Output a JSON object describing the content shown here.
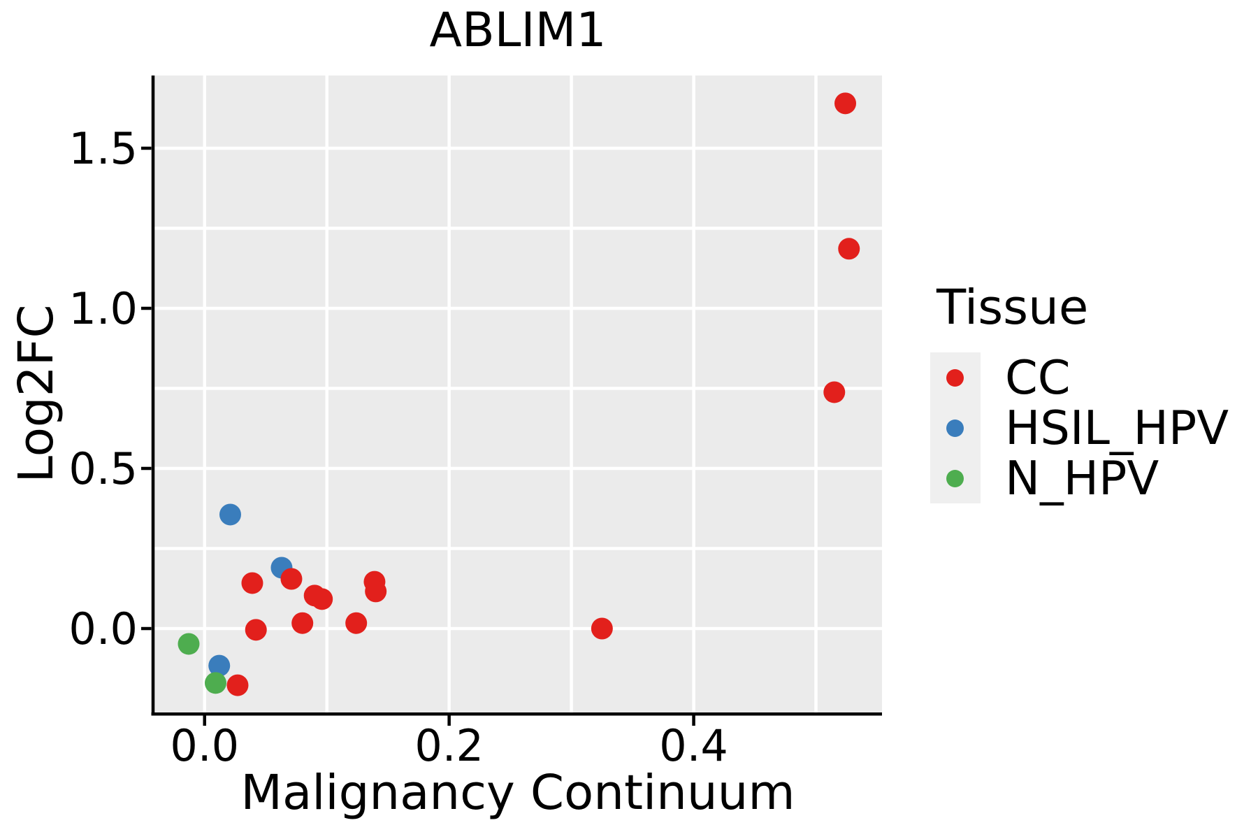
{
  "title": "ABLIM1",
  "legend": {
    "title": "Tissue",
    "items": [
      {
        "label": "CC",
        "color": "#E2201C"
      },
      {
        "label": "HSIL_HPV",
        "color": "#3A7DBC"
      },
      {
        "label": "N_HPV",
        "color": "#4EAD4F"
      }
    ]
  },
  "chart_data": {
    "type": "scatter",
    "title": "ABLIM1",
    "xlabel": "Malignancy Continuum",
    "ylabel": "Log2FC",
    "xlim": [
      -0.041,
      0.554
    ],
    "ylim": [
      -0.262,
      1.727
    ],
    "x_ticks": [
      0.0,
      0.2,
      0.4
    ],
    "x_tick_labels": [
      "0.0",
      "0.2",
      "0.4"
    ],
    "y_ticks": [
      0.0,
      0.5,
      1.0,
      1.5
    ],
    "y_tick_labels": [
      "0.0",
      "0.5",
      "1.0",
      "1.5"
    ],
    "x_grid": [
      0.0,
      0.1,
      0.2,
      0.3,
      0.4,
      0.5
    ],
    "y_grid": [
      0.0,
      0.25,
      0.5,
      0.75,
      1.0,
      1.25,
      1.5
    ],
    "grid": true,
    "panel_bg": "#EBEBEB",
    "grid_color": "#FFFFFF",
    "legend_position": "right",
    "legend_title": "Tissue",
    "series": [
      {
        "name": "CC",
        "color": "#E2201C",
        "points": [
          [
            0.524,
            1.64
          ],
          [
            0.527,
            1.186
          ],
          [
            0.515,
            0.738
          ],
          [
            0.325,
            0.0
          ],
          [
            0.039,
            0.142
          ],
          [
            0.071,
            0.155
          ],
          [
            0.09,
            0.103
          ],
          [
            0.096,
            0.092
          ],
          [
            0.139,
            0.146
          ],
          [
            0.14,
            0.116
          ],
          [
            0.08,
            0.017
          ],
          [
            0.124,
            0.017
          ],
          [
            0.042,
            -0.004
          ],
          [
            0.027,
            -0.177
          ]
        ]
      },
      {
        "name": "HSIL_HPV",
        "color": "#3A7DBC",
        "points": [
          [
            0.021,
            0.356
          ],
          [
            0.063,
            0.19
          ],
          [
            0.012,
            -0.116
          ]
        ]
      },
      {
        "name": "N_HPV",
        "color": "#4EAD4F",
        "points": [
          [
            -0.013,
            -0.048
          ],
          [
            0.009,
            -0.17
          ]
        ]
      }
    ]
  }
}
